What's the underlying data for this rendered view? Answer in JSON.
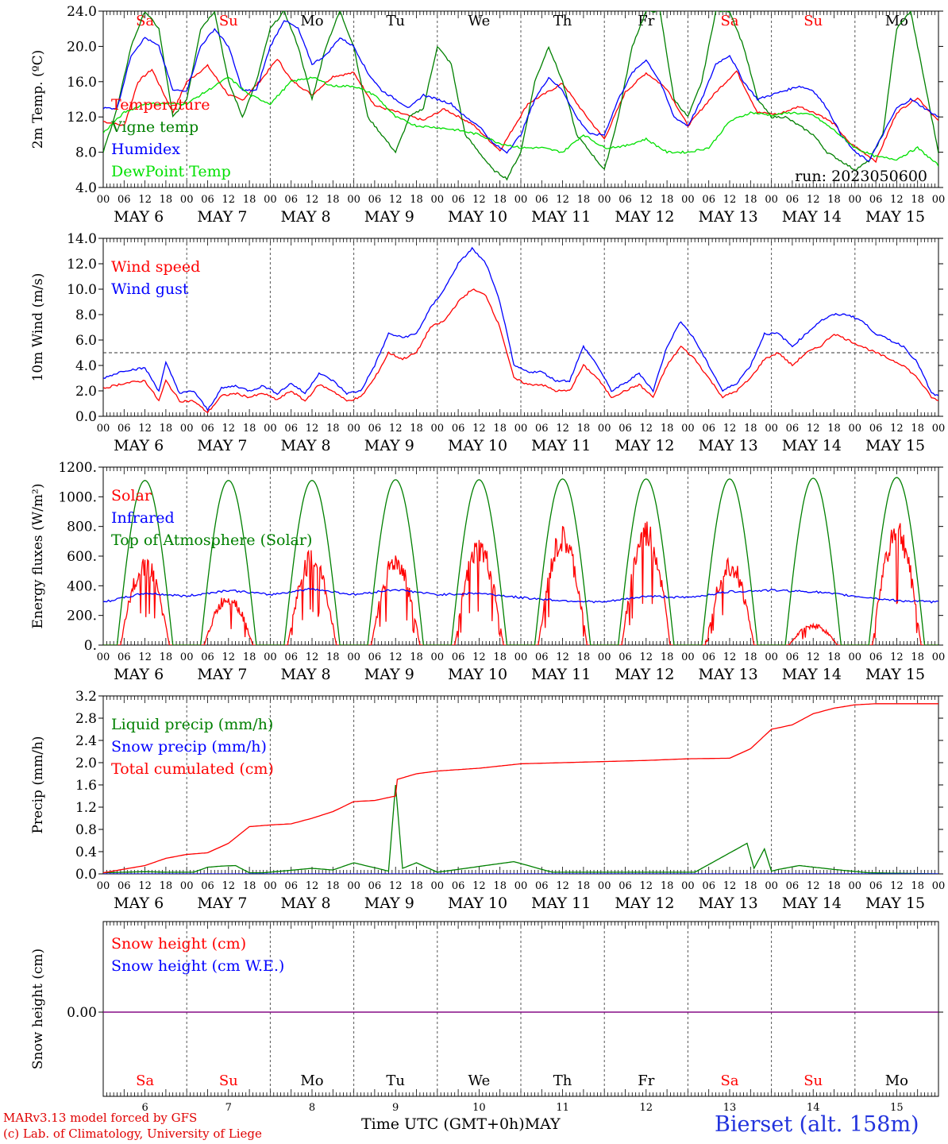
{
  "colors": {
    "red": "#ff0000",
    "green": "#008000",
    "blue": "#0000ff",
    "lightgreen": "#00e000",
    "purple": "#800080",
    "weekend": "#ff0000",
    "weekday": "#000000"
  },
  "time_axis": {
    "hour_ticks": [
      "00",
      "06",
      "12",
      "18"
    ],
    "end_tick": "00",
    "days": [
      "MAY  6",
      "MAY  7",
      "MAY  8",
      "MAY  9",
      "MAY 10",
      "MAY 11",
      "MAY 12",
      "MAY 13",
      "MAY 14",
      "MAY 15"
    ],
    "weekdays": [
      "Sa",
      "Su",
      "Mo",
      "Tu",
      "We",
      "Th",
      "Fr",
      "Sa",
      "Su",
      "Mo"
    ],
    "weekend": [
      true,
      true,
      false,
      false,
      false,
      false,
      false,
      true,
      true,
      false
    ],
    "day_numbers": [
      "6",
      "7",
      "8",
      "9",
      "10",
      "11",
      "12",
      "13",
      "14",
      "15"
    ],
    "month": "MAY",
    "xlabel": "Time UTC (GMT+0h)"
  },
  "footer": {
    "credit_line1": "MARv3.13 model forced by GFS",
    "credit_line2": "(c) Lab. of Climatology, University of Liege",
    "station": "Bierset (alt. 158m)"
  },
  "chart_data": [
    {
      "id": "temperature",
      "type": "line",
      "ylabel": "2m Temp. (ºC)",
      "ylim": [
        4.0,
        24.0
      ],
      "yticks": [
        4.0,
        8.0,
        12.0,
        16.0,
        20.0,
        24.0
      ],
      "ytick_labels": [
        "4.0",
        "8.0",
        "12.0",
        "16.0",
        "20.0",
        "24.0"
      ],
      "annotation": "run: 2023050600",
      "series": [
        {
          "name": "Temperature",
          "color": "#ff0000",
          "x_hours": [
            0,
            6,
            10,
            14,
            20,
            24,
            30,
            36,
            40,
            46,
            50,
            54,
            60,
            66,
            72,
            78,
            84,
            92,
            98,
            106,
            114,
            122,
            132,
            138,
            144,
            150,
            156,
            162,
            168,
            176,
            182,
            188,
            194,
            200,
            206,
            210,
            214,
            222,
            228,
            234,
            240
          ],
          "y": [
            11.5,
            11,
            16,
            17.4,
            12.5,
            16,
            17.8,
            14.5,
            13.9,
            16.5,
            18.6,
            16.2,
            14.5,
            16.6,
            17,
            13.3,
            12.6,
            11.6,
            12.9,
            11.2,
            8.2,
            13.5,
            15.8,
            12.5,
            9.5,
            14.8,
            17,
            15.2,
            11,
            14.8,
            17.2,
            12.5,
            12.3,
            13.2,
            12.2,
            11.2,
            9.2,
            7,
            12.5,
            14.2,
            11.5
          ]
        },
        {
          "name": "Vigne temp",
          "color": "#008000",
          "x_hours": [
            0,
            4,
            8,
            12,
            16,
            20,
            24,
            28,
            32,
            36,
            40,
            44,
            48,
            52,
            56,
            60,
            64,
            68,
            72,
            76,
            80,
            84,
            88,
            92,
            96,
            100,
            104,
            108,
            112,
            116,
            120,
            124,
            128,
            132,
            136,
            140,
            144,
            148,
            152,
            156,
            160,
            164,
            168,
            172,
            176,
            180,
            184,
            188,
            192,
            196,
            200,
            204,
            208,
            212,
            216,
            220,
            224,
            228,
            232,
            236,
            240
          ],
          "y": [
            8,
            13,
            20,
            24,
            22,
            12,
            14,
            22,
            24,
            16,
            12,
            16,
            22,
            24,
            20,
            14,
            20,
            24,
            20,
            12,
            10,
            8,
            12,
            13,
            20,
            18,
            10,
            8,
            6,
            5,
            8,
            16,
            20,
            16,
            10,
            8,
            6,
            12,
            20,
            24,
            24,
            14,
            12,
            16,
            24,
            24,
            20,
            14,
            12,
            12,
            11,
            10,
            8,
            7,
            6,
            7,
            10,
            22,
            24,
            16,
            8
          ]
        },
        {
          "name": "Humidex",
          "color": "#0000ff",
          "x_hours": [
            0,
            4,
            8,
            12,
            16,
            20,
            24,
            28,
            32,
            36,
            40,
            44,
            48,
            52,
            56,
            60,
            64,
            68,
            72,
            76,
            80,
            84,
            88,
            92,
            96,
            100,
            104,
            108,
            112,
            116,
            120,
            124,
            128,
            132,
            136,
            140,
            144,
            148,
            152,
            156,
            160,
            164,
            168,
            172,
            176,
            180,
            184,
            188,
            192,
            196,
            200,
            204,
            208,
            212,
            216,
            220,
            224,
            228,
            232,
            236,
            240
          ],
          "y": [
            13,
            13,
            19,
            21,
            20,
            15,
            15,
            20,
            22,
            20,
            15,
            15,
            20,
            23,
            22,
            18,
            19,
            21,
            20,
            17,
            15,
            14,
            13,
            14.5,
            14,
            13.5,
            12,
            11,
            9,
            8,
            10,
            14,
            16.5,
            15,
            12,
            10,
            10,
            14,
            17,
            18.5,
            16,
            12,
            11,
            14,
            18,
            19,
            16,
            14,
            14.5,
            15,
            15.5,
            15,
            13,
            10,
            8,
            7,
            10,
            13,
            14,
            13,
            12
          ]
        },
        {
          "name": "DewPoint Temp",
          "color": "#00e000",
          "x_hours": [
            0,
            6,
            12,
            18,
            24,
            30,
            36,
            42,
            48,
            54,
            60,
            66,
            72,
            78,
            84,
            90,
            96,
            102,
            108,
            114,
            120,
            126,
            132,
            138,
            144,
            150,
            156,
            162,
            168,
            174,
            180,
            186,
            192,
            198,
            204,
            210,
            216,
            222,
            228,
            234,
            240
          ],
          "y": [
            10.2,
            12.5,
            13.5,
            13.5,
            13.5,
            15,
            16.5,
            14.5,
            13.5,
            16,
            16.5,
            15.5,
            15.5,
            14.5,
            12,
            11,
            10.8,
            10.5,
            10,
            9,
            8.5,
            8.5,
            8,
            10,
            8.5,
            8.7,
            9.5,
            8,
            8,
            8.5,
            11.5,
            12.5,
            12.2,
            12.5,
            12.2,
            10.5,
            8.5,
            7.5,
            7.2,
            8.5,
            6.5
          ]
        }
      ]
    },
    {
      "id": "wind",
      "type": "line",
      "ylabel": "10m Wind (m/s)",
      "ylim": [
        0.0,
        14.0
      ],
      "yticks": [
        0,
        2,
        4,
        6,
        8,
        10,
        12,
        14
      ],
      "ytick_labels": [
        "0.0",
        "2.0",
        "4.0",
        "6.0",
        "8.0",
        "10.0",
        "12.0",
        "14.0"
      ],
      "reference_line": 5.0,
      "series": [
        {
          "name": "Wind speed",
          "color": "#ff0000",
          "x_hours": [
            0,
            6,
            12,
            16,
            18,
            22,
            26,
            30,
            34,
            38,
            42,
            46,
            50,
            54,
            58,
            62,
            66,
            70,
            74,
            78,
            82,
            86,
            90,
            94,
            98,
            102,
            106,
            110,
            114,
            118,
            122,
            126,
            130,
            134,
            138,
            142,
            146,
            150,
            154,
            158,
            162,
            166,
            170,
            174,
            178,
            182,
            186,
            190,
            194,
            198,
            202,
            206,
            210,
            214,
            218,
            222,
            226,
            230,
            234,
            238,
            240
          ],
          "y": [
            2.2,
            2.6,
            2.8,
            1.2,
            2.8,
            1.2,
            1.2,
            0.3,
            1.6,
            1.8,
            1.5,
            1.8,
            1.3,
            2,
            1.2,
            2.5,
            2,
            1.2,
            1.5,
            3,
            5,
            4.5,
            5,
            7,
            7.5,
            9,
            10,
            9.5,
            7,
            3,
            2.5,
            2.5,
            2,
            2,
            4,
            3,
            1.5,
            2,
            2.5,
            1.5,
            4,
            5.5,
            4.5,
            3,
            1.5,
            2,
            3,
            4.5,
            5,
            4,
            5,
            5.5,
            6.5,
            6,
            5.5,
            5,
            4.5,
            4,
            3,
            1.5,
            1.2
          ]
        },
        {
          "name": "Wind gust",
          "color": "#0000ff",
          "x_hours": [
            0,
            6,
            12,
            16,
            18,
            22,
            26,
            30,
            34,
            38,
            42,
            46,
            50,
            54,
            58,
            62,
            66,
            70,
            74,
            78,
            82,
            86,
            90,
            94,
            98,
            102,
            106,
            110,
            114,
            118,
            122,
            126,
            130,
            134,
            138,
            142,
            146,
            150,
            154,
            158,
            162,
            166,
            170,
            174,
            178,
            182,
            186,
            190,
            194,
            198,
            202,
            206,
            210,
            214,
            218,
            222,
            226,
            230,
            234,
            238,
            240
          ],
          "y": [
            3,
            3.6,
            3.8,
            2,
            4.2,
            1.8,
            2,
            0.5,
            2.2,
            2.4,
            2,
            2.4,
            1.8,
            2.6,
            1.8,
            3.4,
            2.8,
            1.8,
            2,
            4,
            6.5,
            6.2,
            6.5,
            8.5,
            10,
            12,
            13.2,
            12,
            9,
            4,
            3.5,
            3.5,
            2.8,
            2.8,
            5.5,
            4,
            2,
            2.6,
            3.4,
            2,
            5.5,
            7.5,
            6,
            4,
            2,
            2.6,
            4,
            6.5,
            6.5,
            5.5,
            6.5,
            7.5,
            8,
            8,
            7.5,
            6.5,
            6,
            5.5,
            4.2,
            1.8,
            1.6
          ]
        }
      ]
    },
    {
      "id": "energy",
      "type": "line",
      "ylabel": "Energy fluxes (W/m²)",
      "ylim": [
        0,
        1200
      ],
      "yticks": [
        0,
        200,
        400,
        600,
        800,
        1000,
        1200
      ],
      "ytick_labels": [
        "0.",
        "200.",
        "400.",
        "600.",
        "800.",
        "1000.",
        "1200."
      ],
      "series": [
        {
          "name": "Solar",
          "color": "#ff0000",
          "day_peaks": [
            620,
            360,
            650,
            640,
            730,
            800,
            850,
            620,
            150,
            870
          ]
        },
        {
          "name": "Infrared",
          "color": "#0000ff",
          "x_hours": [
            0,
            12,
            24,
            36,
            48,
            60,
            72,
            84,
            96,
            108,
            120,
            132,
            144,
            156,
            168,
            180,
            192,
            204,
            216,
            228,
            240
          ],
          "y": [
            290,
            350,
            330,
            370,
            340,
            380,
            340,
            375,
            340,
            350,
            320,
            300,
            290,
            330,
            320,
            360,
            370,
            360,
            330,
            300,
            290
          ]
        },
        {
          "name": "Top of Atmosphere (Solar)",
          "color": "#008000",
          "day_peaks": [
            1110,
            1110,
            1110,
            1115,
            1115,
            1120,
            1120,
            1120,
            1125,
            1130
          ]
        }
      ]
    },
    {
      "id": "precip",
      "type": "line",
      "ylabel": "Precip (mm/h)",
      "ylim": [
        0.0,
        3.2
      ],
      "yticks": [
        0,
        0.4,
        0.8,
        1.2,
        1.6,
        2.0,
        2.4,
        2.8,
        3.2
      ],
      "ytick_labels": [
        "0.0",
        "0.4",
        "0.8",
        "1.2",
        "1.6",
        "2.0",
        "2.4",
        "2.8",
        "3.2"
      ],
      "series": [
        {
          "name": "Liquid precip (mm/h)",
          "color": "#008000",
          "x_hours": [
            0,
            12,
            18,
            26,
            30,
            34,
            38,
            42,
            46,
            60,
            66,
            72,
            82,
            84,
            86,
            90,
            96,
            118,
            129,
            170,
            185,
            187,
            190,
            192,
            194,
            200,
            210,
            220,
            240
          ],
          "y": [
            0.02,
            0.04,
            0.03,
            0.03,
            0.12,
            0.14,
            0.15,
            0.02,
            0.02,
            0.1,
            0.07,
            0.2,
            0.05,
            1.6,
            0.1,
            0.2,
            0.03,
            0.22,
            0.03,
            0.03,
            0.55,
            0.1,
            0.45,
            0.05,
            0.08,
            0.15,
            0.08,
            0.02,
            0
          ]
        },
        {
          "name": "Snow precip (mm/h)",
          "color": "#0000ff",
          "x_hours": [
            0,
            240
          ],
          "y": [
            0,
            0
          ]
        },
        {
          "name": "Total cumulated (cm)",
          "color": "#ff0000",
          "x_hours": [
            0,
            12,
            18,
            24,
            30,
            36,
            42,
            48,
            54,
            60,
            66,
            72,
            78,
            84,
            84.5,
            90,
            96,
            108,
            120,
            132,
            144,
            156,
            168,
            180,
            186,
            192,
            198,
            204,
            210,
            216,
            222,
            228,
            240
          ],
          "y": [
            0.02,
            0.15,
            0.28,
            0.35,
            0.38,
            0.55,
            0.85,
            0.88,
            0.9,
            1.0,
            1.12,
            1.3,
            1.32,
            1.4,
            1.7,
            1.8,
            1.85,
            1.9,
            1.98,
            2.0,
            2.02,
            2.04,
            2.07,
            2.08,
            2.25,
            2.6,
            2.68,
            2.88,
            2.98,
            3.04,
            3.06,
            3.06,
            3.06
          ]
        }
      ]
    },
    {
      "id": "snow",
      "type": "line",
      "ylabel": "Snow height (cm)",
      "yticks": [
        0
      ],
      "ytick_labels": [
        "0.00"
      ],
      "series": [
        {
          "name": "Snow height (cm)",
          "color": "#ff0000",
          "x_hours": [
            0,
            240
          ],
          "y": [
            0,
            0
          ]
        },
        {
          "name": "Snow height (cm W.E.)",
          "color": "#0000ff",
          "x_hours": [
            0,
            240
          ],
          "y": [
            0,
            0
          ]
        }
      ]
    }
  ]
}
